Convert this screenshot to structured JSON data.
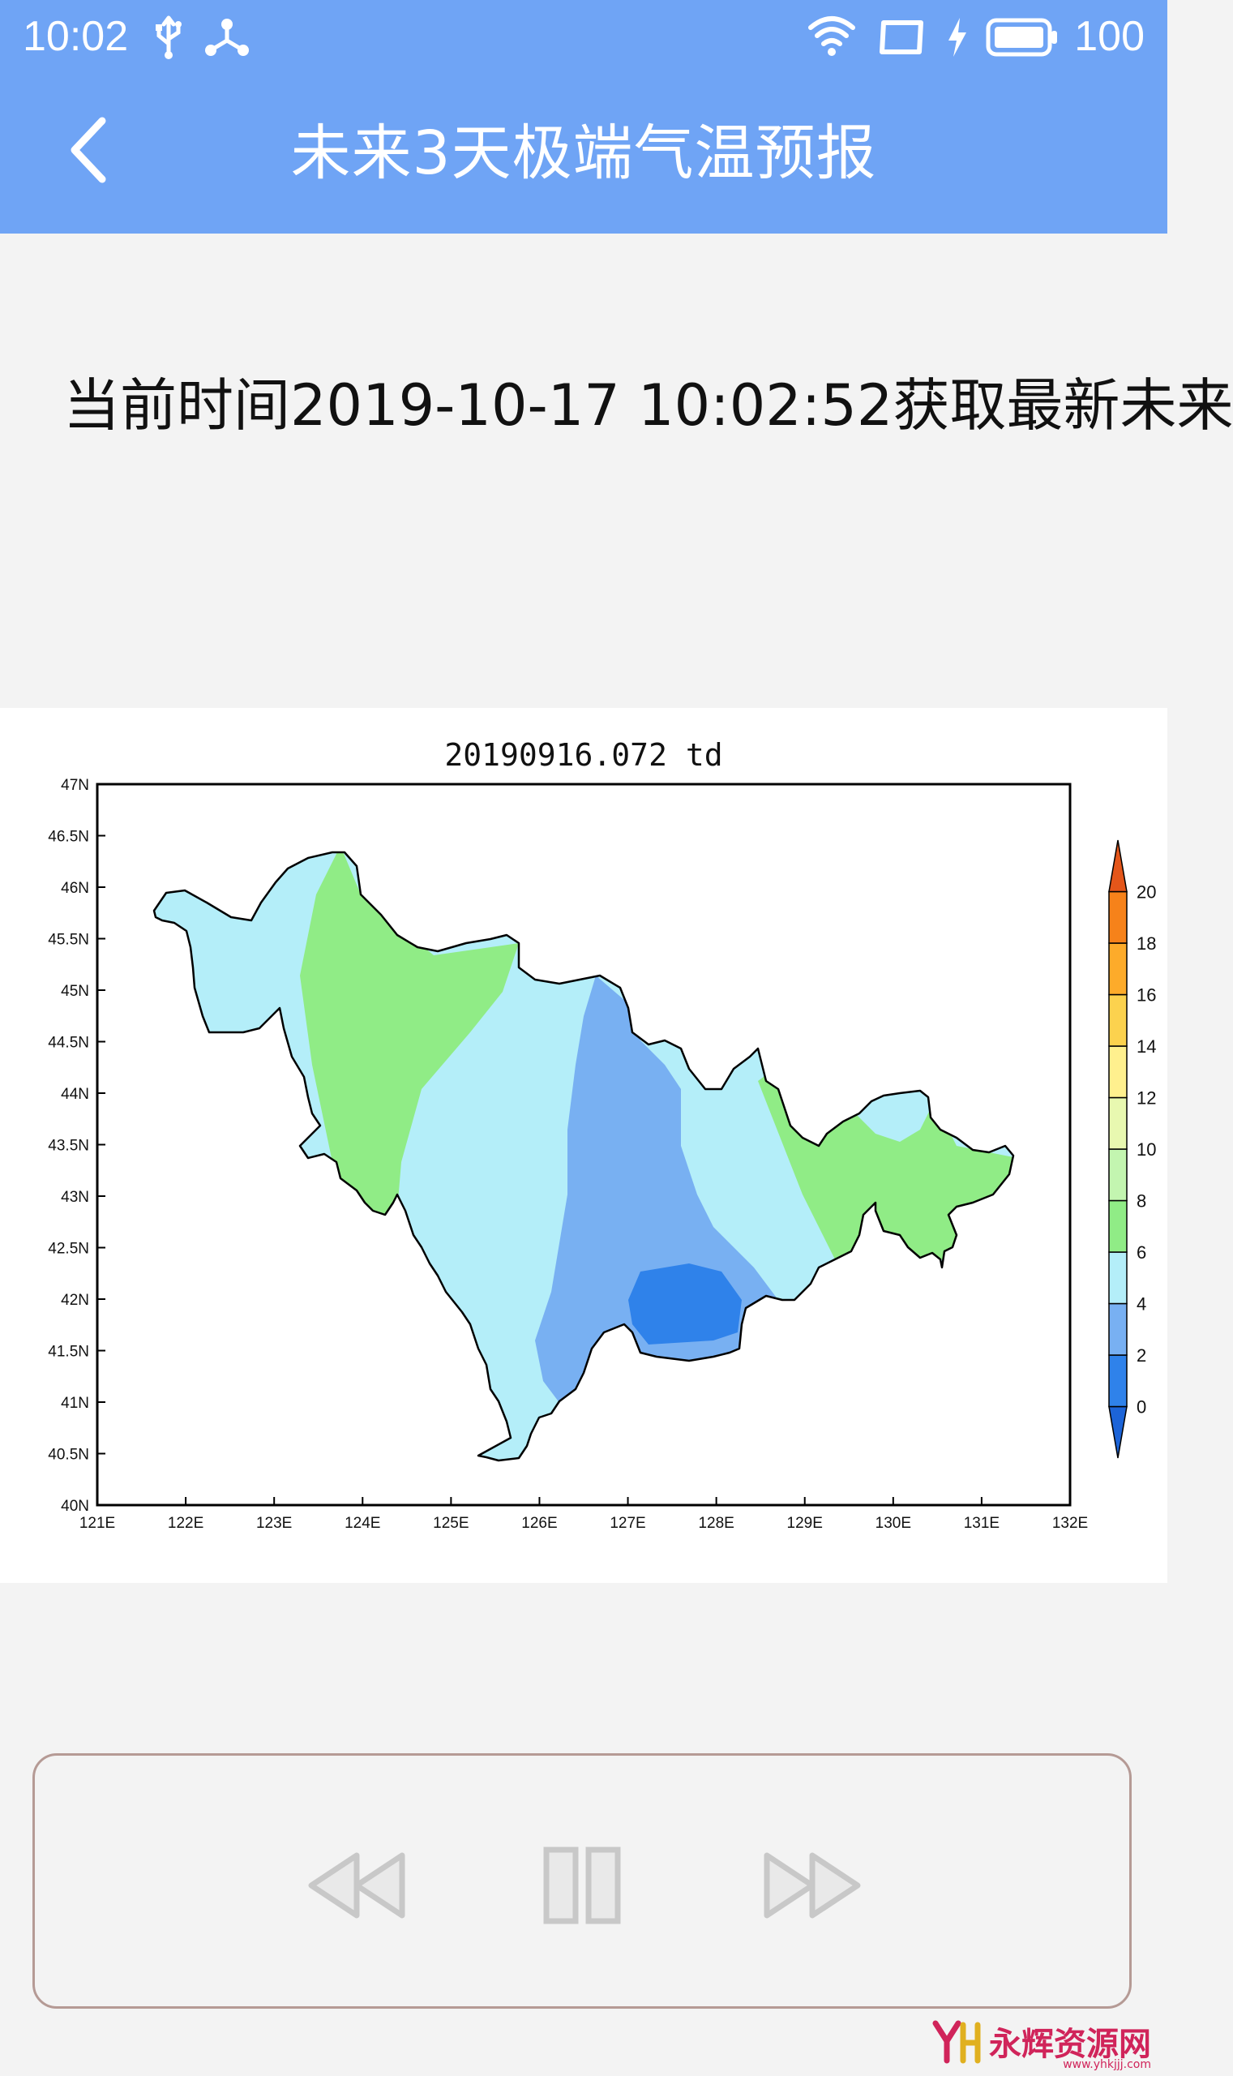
{
  "status_bar": {
    "time": "10:02",
    "battery": "100",
    "icons": [
      "usb-icon",
      "network-share-icon",
      "wifi-icon",
      "screen-rotate-icon",
      "charging-icon",
      "battery-icon"
    ]
  },
  "toolbar": {
    "title": "未来3天极端气温预报",
    "back_icon": "chevron-left-icon",
    "background_color": "#6fa4f5"
  },
  "info_text": "当前时间2019-10-17 10:02:52获取最新未来",
  "chart_data": {
    "type": "heatmap",
    "title": "20190916.072  td",
    "x_ticks": [
      "121E",
      "122E",
      "123E",
      "124E",
      "125E",
      "126E",
      "127E",
      "128E",
      "129E",
      "130E",
      "131E",
      "132E"
    ],
    "y_ticks": [
      "40N",
      "40.5N",
      "41N",
      "41.5N",
      "42N",
      "42.5N",
      "43N",
      "43.5N",
      "44N",
      "44.5N",
      "45N",
      "45.5N",
      "46N",
      "46.5N",
      "47N"
    ],
    "xlim": [
      121,
      132
    ],
    "ylim": [
      40,
      47
    ],
    "colorbar_ticks": [
      "0",
      "2",
      "4",
      "6",
      "8",
      "10",
      "12",
      "14",
      "16",
      "18",
      "20"
    ],
    "colorbar_colors": [
      "#1c64d8",
      "#2f82ea",
      "#78b0f2",
      "#b4eef9",
      "#90ec86",
      "#c3f5b0",
      "#e8f8b0",
      "#fff08e",
      "#fcd24e",
      "#fdab2a",
      "#f6821a",
      "#e4561a"
    ],
    "legend_position": "right"
  },
  "player": {
    "controls": [
      "rewind-button",
      "pause-button",
      "fast-forward-button"
    ]
  },
  "watermark": {
    "text": "永辉资源网",
    "sub": "www.yhkjjj.com"
  }
}
